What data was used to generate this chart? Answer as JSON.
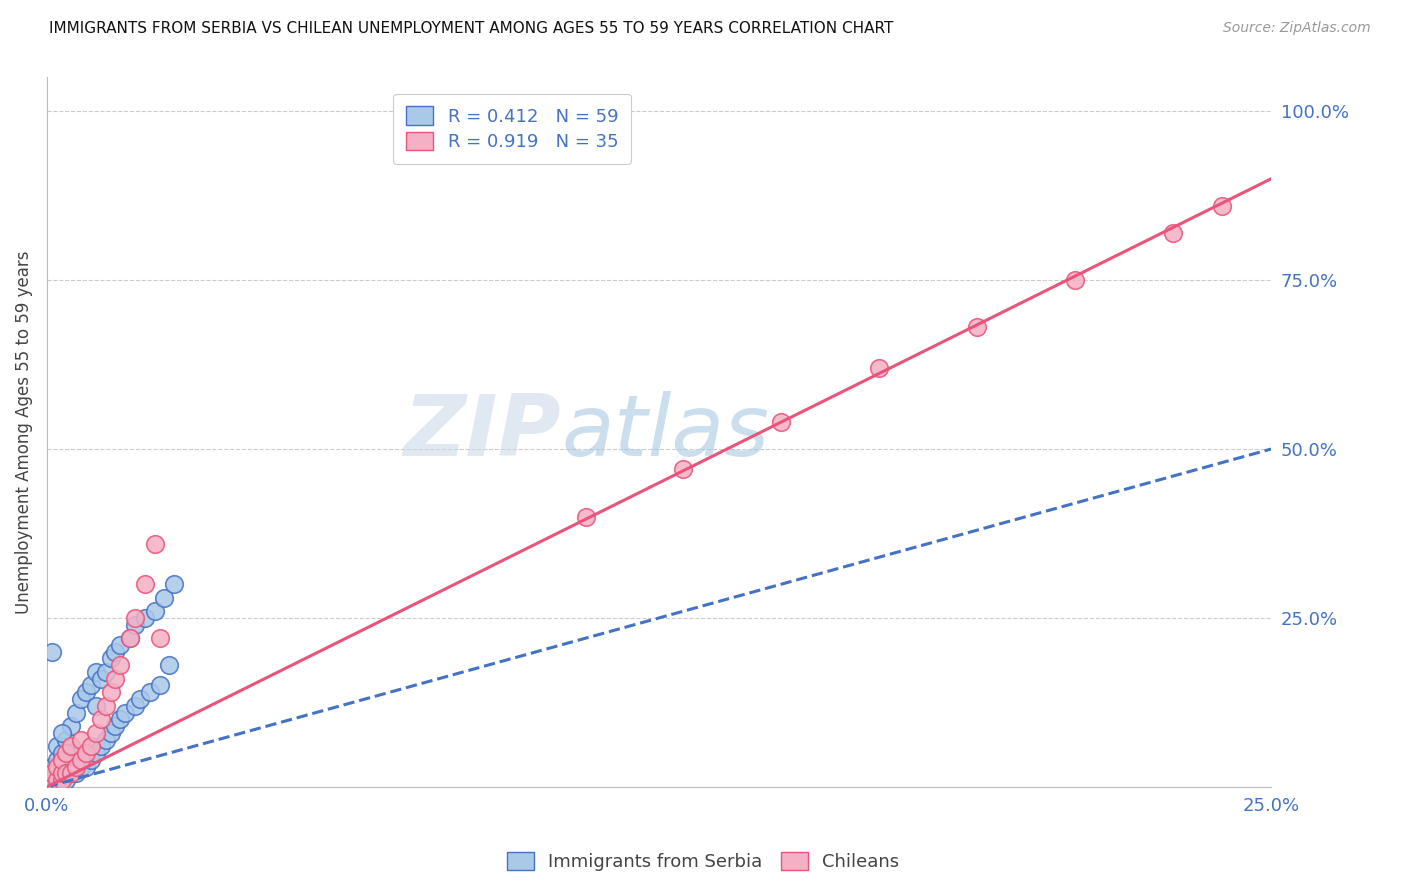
{
  "title": "IMMIGRANTS FROM SERBIA VS CHILEAN UNEMPLOYMENT AMONG AGES 55 TO 59 YEARS CORRELATION CHART",
  "source": "Source: ZipAtlas.com",
  "ylabel": "Unemployment Among Ages 55 to 59 years",
  "xlim": [
    0.0,
    0.25
  ],
  "ylim": [
    0.0,
    1.05
  ],
  "xtick_positions": [
    0.0,
    0.05,
    0.1,
    0.15,
    0.2,
    0.25
  ],
  "xtick_labels": [
    "0.0%",
    "",
    "",
    "",
    "",
    "25.0%"
  ],
  "ytick_positions": [
    0.0,
    0.25,
    0.5,
    0.75,
    1.0
  ],
  "ytick_labels_right": [
    "",
    "25.0%",
    "50.0%",
    "75.0%",
    "100.0%"
  ],
  "serbia_face_color": "#aac8e8",
  "serbia_edge_color": "#4472c4",
  "chilean_face_color": "#f4b0c4",
  "chilean_edge_color": "#e8547a",
  "serbia_R": 0.412,
  "serbia_N": 59,
  "chilean_R": 0.919,
  "chilean_N": 35,
  "serbia_line_color": "#4472c4",
  "chilean_line_color": "#e8547a",
  "watermark_color": "#c8dff5",
  "legend_label_serbia": "Immigrants from Serbia",
  "legend_label_chileans": "Chileans",
  "serbia_line_slope": 2.0,
  "serbia_line_intercept": 0.0,
  "chilean_line_slope": 3.6,
  "chilean_line_intercept": 0.0,
  "serbia_x": [
    0.001,
    0.001,
    0.001,
    0.001,
    0.002,
    0.002,
    0.002,
    0.002,
    0.003,
    0.003,
    0.003,
    0.003,
    0.003,
    0.004,
    0.004,
    0.004,
    0.004,
    0.005,
    0.005,
    0.005,
    0.005,
    0.006,
    0.006,
    0.006,
    0.006,
    0.007,
    0.007,
    0.007,
    0.008,
    0.008,
    0.008,
    0.009,
    0.009,
    0.01,
    0.01,
    0.01,
    0.011,
    0.011,
    0.012,
    0.012,
    0.013,
    0.013,
    0.014,
    0.014,
    0.015,
    0.015,
    0.016,
    0.017,
    0.018,
    0.018,
    0.019,
    0.02,
    0.021,
    0.022,
    0.023,
    0.024,
    0.025,
    0.026,
    0.003
  ],
  "serbia_y": [
    0.01,
    0.02,
    0.03,
    0.2,
    0.01,
    0.02,
    0.04,
    0.06,
    0.01,
    0.02,
    0.03,
    0.04,
    0.05,
    0.01,
    0.02,
    0.04,
    0.07,
    0.02,
    0.03,
    0.05,
    0.09,
    0.02,
    0.03,
    0.05,
    0.11,
    0.03,
    0.05,
    0.13,
    0.03,
    0.05,
    0.14,
    0.04,
    0.15,
    0.05,
    0.12,
    0.17,
    0.06,
    0.16,
    0.07,
    0.17,
    0.08,
    0.19,
    0.09,
    0.2,
    0.1,
    0.21,
    0.11,
    0.22,
    0.12,
    0.24,
    0.13,
    0.25,
    0.14,
    0.26,
    0.15,
    0.28,
    0.18,
    0.3,
    0.08
  ],
  "chilean_x": [
    0.001,
    0.001,
    0.002,
    0.002,
    0.003,
    0.003,
    0.003,
    0.004,
    0.004,
    0.005,
    0.005,
    0.006,
    0.007,
    0.007,
    0.008,
    0.009,
    0.01,
    0.011,
    0.012,
    0.013,
    0.014,
    0.015,
    0.017,
    0.018,
    0.02,
    0.022,
    0.023,
    0.11,
    0.13,
    0.15,
    0.17,
    0.19,
    0.21,
    0.23,
    0.24
  ],
  "chilean_y": [
    0.01,
    0.02,
    0.01,
    0.03,
    0.01,
    0.02,
    0.04,
    0.02,
    0.05,
    0.02,
    0.06,
    0.03,
    0.04,
    0.07,
    0.05,
    0.06,
    0.08,
    0.1,
    0.12,
    0.14,
    0.16,
    0.18,
    0.22,
    0.25,
    0.3,
    0.36,
    0.22,
    0.4,
    0.47,
    0.54,
    0.62,
    0.68,
    0.75,
    0.82,
    0.86
  ]
}
